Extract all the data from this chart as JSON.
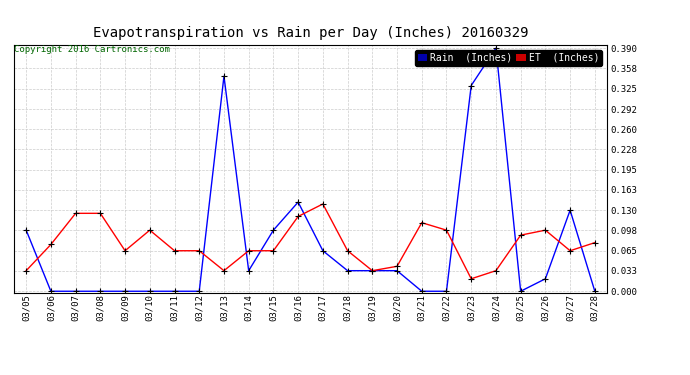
{
  "title": "Evapotranspiration vs Rain per Day (Inches) 20160329",
  "copyright": "Copyright 2016 Cartronics.com",
  "x_labels": [
    "03/05",
    "03/06",
    "03/07",
    "03/08",
    "03/09",
    "03/10",
    "03/11",
    "03/12",
    "03/13",
    "03/14",
    "03/15",
    "03/16",
    "03/17",
    "03/18",
    "03/19",
    "03/20",
    "03/21",
    "03/22",
    "03/23",
    "03/24",
    "03/25",
    "03/26",
    "03/27",
    "03/28"
  ],
  "rain_inches": [
    0.098,
    0.0,
    0.0,
    0.0,
    0.0,
    0.0,
    0.0,
    0.0,
    0.345,
    0.033,
    0.098,
    0.143,
    0.065,
    0.033,
    0.033,
    0.033,
    0.0,
    0.0,
    0.33,
    0.39,
    0.0,
    0.02,
    0.13,
    0.0
  ],
  "et_inches": [
    0.033,
    0.075,
    0.125,
    0.125,
    0.065,
    0.098,
    0.065,
    0.065,
    0.033,
    0.065,
    0.065,
    0.12,
    0.14,
    0.065,
    0.033,
    0.04,
    0.11,
    0.098,
    0.02,
    0.033,
    0.09,
    0.098,
    0.065,
    0.078
  ],
  "rain_color": "#0000FF",
  "et_color": "#FF0000",
  "marker_color": "#000000",
  "grid_color": "#CCCCCC",
  "bg_color": "#FFFFFF",
  "legend_rain_bg": "#0000AA",
  "legend_et_bg": "#CC0000",
  "legend_rain_text": "Rain  (Inches)",
  "legend_et_text": "ET  (Inches)",
  "ylim": [
    0.0,
    0.39
  ],
  "yticks": [
    0.0,
    0.033,
    0.065,
    0.098,
    0.13,
    0.163,
    0.195,
    0.228,
    0.26,
    0.292,
    0.325,
    0.358,
    0.39
  ],
  "title_fontsize": 10,
  "copyright_fontsize": 6.5,
  "tick_fontsize": 6.5,
  "legend_fontsize": 7
}
